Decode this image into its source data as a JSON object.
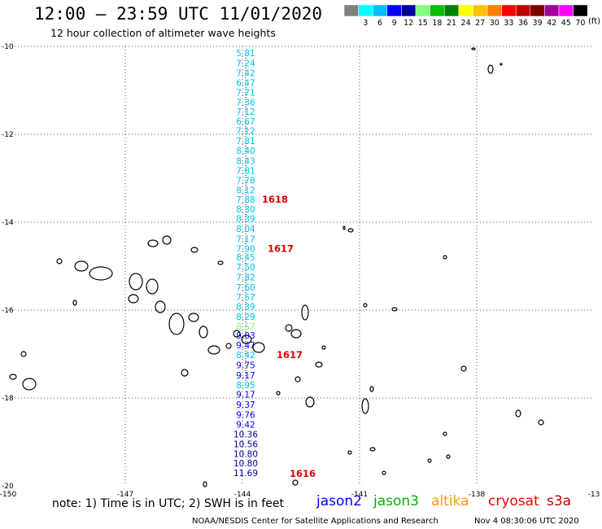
{
  "header": {
    "title": "12:00 – 23:59 UTC 11/01/2020",
    "subtitle": "12 hour collection of altimeter wave heights"
  },
  "legend": {
    "units": "(ft)",
    "bins": [
      {
        "label": "",
        "color": "#808080"
      },
      {
        "label": "3",
        "color": "#00ffff"
      },
      {
        "label": "6",
        "color": "#00c0ff"
      },
      {
        "label": "9",
        "color": "#0000ff"
      },
      {
        "label": "12",
        "color": "#0000a0"
      },
      {
        "label": "15",
        "color": "#80ff80"
      },
      {
        "label": "18",
        "color": "#00c000"
      },
      {
        "label": "21",
        "color": "#008000"
      },
      {
        "label": "24",
        "color": "#ffff00"
      },
      {
        "label": "27",
        "color": "#ffc000"
      },
      {
        "label": "30",
        "color": "#ff8000"
      },
      {
        "label": "33",
        "color": "#ff0000"
      },
      {
        "label": "36",
        "color": "#c00000"
      },
      {
        "label": "39",
        "color": "#800000"
      },
      {
        "label": "42",
        "color": "#a000a0"
      },
      {
        "label": "45",
        "color": "#ff00ff"
      },
      {
        "label": "70",
        "color": "#000000"
      }
    ]
  },
  "axes": {
    "lat_labels": [
      "-10",
      "-12",
      "-14",
      "-16",
      "-18",
      "-20"
    ],
    "lon_labels": [
      "-150",
      "-147",
      "-144",
      "-141",
      "-138",
      "-13"
    ],
    "lat_range": [
      -20,
      -10
    ],
    "lon_range": [
      -150,
      -135
    ],
    "grid": "dotted"
  },
  "track": {
    "readings": [
      {
        "value": "5.81",
        "lat": -10.15,
        "color": "#00bfef"
      },
      {
        "value": "7.24",
        "lat": -10.38,
        "color": "#00bfef"
      },
      {
        "value": "7.42",
        "lat": -10.6,
        "color": "#00bfef"
      },
      {
        "value": "6.47",
        "lat": -10.82,
        "color": "#00bfef"
      },
      {
        "value": "7.71",
        "lat": -11.05,
        "color": "#00bfef"
      },
      {
        "value": "7.36",
        "lat": -11.27,
        "color": "#00bfef"
      },
      {
        "value": "7.12",
        "lat": -11.48,
        "color": "#00bfef"
      },
      {
        "value": "6.67",
        "lat": -11.7,
        "color": "#00bfef"
      },
      {
        "value": "7.12",
        "lat": -11.92,
        "color": "#00bfef"
      },
      {
        "value": "7.81",
        "lat": -12.15,
        "color": "#00bfef"
      },
      {
        "value": "8.40",
        "lat": -12.37,
        "color": "#00bfef"
      },
      {
        "value": "8.43",
        "lat": -12.6,
        "color": "#00bfef"
      },
      {
        "value": "7.81",
        "lat": -12.82,
        "color": "#00bfef"
      },
      {
        "value": "7.78",
        "lat": -13.05,
        "color": "#00bfef"
      },
      {
        "value": "8.12",
        "lat": -13.27,
        "color": "#00bfef"
      },
      {
        "value": "7.88",
        "lat": -13.48,
        "color": "#00bfef"
      },
      {
        "value": "8.30",
        "lat": -13.7,
        "color": "#00bfef"
      },
      {
        "value": "8.39",
        "lat": -13.92,
        "color": "#00bfef"
      },
      {
        "value": "8.04",
        "lat": -14.15,
        "color": "#00bfef"
      },
      {
        "value": "7.17",
        "lat": -14.38,
        "color": "#00bfef"
      },
      {
        "value": "7.90",
        "lat": -14.6,
        "color": "#00bfef"
      },
      {
        "value": "8.45",
        "lat": -14.8,
        "color": "#00bfef"
      },
      {
        "value": "7.50",
        "lat": -15.02,
        "color": "#00bfef"
      },
      {
        "value": "7.82",
        "lat": -15.25,
        "color": "#00bfef"
      },
      {
        "value": "7.60",
        "lat": -15.48,
        "color": "#00bfef"
      },
      {
        "value": "7.57",
        "lat": -15.7,
        "color": "#00bfef"
      },
      {
        "value": "8.39",
        "lat": -15.92,
        "color": "#00bfef"
      },
      {
        "value": "8.29",
        "lat": -16.15,
        "color": "#00bfef"
      },
      {
        "value": "8.57",
        "lat": -16.37,
        "color": "#80ff80"
      },
      {
        "value": "9.03",
        "lat": -16.57,
        "color": "#0000ff"
      },
      {
        "value": "9.47",
        "lat": -16.8,
        "color": "#0000ff"
      },
      {
        "value": "8.42",
        "lat": -17.02,
        "color": "#00bfef"
      },
      {
        "value": "9.75",
        "lat": -17.25,
        "color": "#0000ff"
      },
      {
        "value": "9.17",
        "lat": -17.48,
        "color": "#0000ff"
      },
      {
        "value": "8.95",
        "lat": -17.7,
        "color": "#00bfef"
      },
      {
        "value": "9.17",
        "lat": -17.92,
        "color": "#0000ff"
      },
      {
        "value": "9.37",
        "lat": -18.15,
        "color": "#0000ff"
      },
      {
        "value": "9.76",
        "lat": -18.38,
        "color": "#0000ff"
      },
      {
        "value": "9.42",
        "lat": -18.6,
        "color": "#0000ff"
      },
      {
        "value": "10.36",
        "lat": -18.82,
        "color": "#0000a0"
      },
      {
        "value": "10.56",
        "lat": -19.05,
        "color": "#0000a0"
      },
      {
        "value": "10.80",
        "lat": -19.27,
        "color": "#0000a0"
      },
      {
        "value": "10.80",
        "lat": -19.48,
        "color": "#0000a0"
      },
      {
        "value": "11.69",
        "lat": -19.7,
        "color": "#0000a0"
      }
    ],
    "time_labels": [
      {
        "value": "1618",
        "lat": -13.48
      },
      {
        "value": "1617",
        "lat": -14.6
      },
      {
        "value": "1617",
        "lat": -17.02
      },
      {
        "value": "1616",
        "lat": -19.72
      }
    ]
  },
  "footer": {
    "note": "note: 1) Time is in UTC; 2) SWH is in feet",
    "satellites": [
      {
        "name": "jason2",
        "color": "#0000ff"
      },
      {
        "name": "jason3",
        "color": "#00b000"
      },
      {
        "name": "altika",
        "color": "#ff9900"
      },
      {
        "name": "cryosat",
        "color": "#ff0000"
      },
      {
        "name": "s3a",
        "color": "#c00000"
      }
    ],
    "credit": "NOAA/NESDIS Center for Satellite Applications and Research",
    "timestamp": "Nov  4 08:30:06 UTC 2020"
  }
}
